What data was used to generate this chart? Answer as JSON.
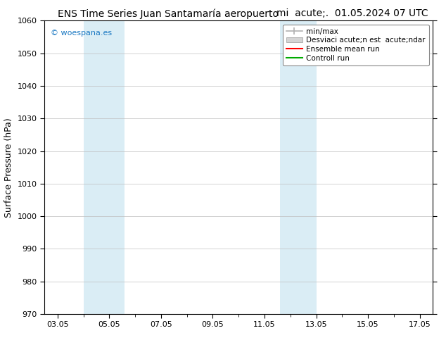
{
  "title": "ENS Time Series Juan Santamaría aeropuerto        mi  acute;.  01.05.2024 07 UTC",
  "ylabel": "Surface Pressure (hPa)",
  "ylim": [
    970,
    1060
  ],
  "yticks": [
    970,
    980,
    990,
    1000,
    1010,
    1020,
    1030,
    1040,
    1050,
    1060
  ],
  "xlim": [
    2.5,
    17.5
  ],
  "xtick_labels": [
    "03.05",
    "05.05",
    "07.05",
    "09.05",
    "11.05",
    "13.05",
    "15.05",
    "17.05"
  ],
  "xtick_positions": [
    3,
    5,
    7,
    9,
    11,
    13,
    15,
    17
  ],
  "shade_bands": [
    {
      "xmin": 4.0,
      "xmax": 5.6,
      "color": "#daedf5",
      "alpha": 1.0
    },
    {
      "xmin": 11.6,
      "xmax": 13.0,
      "color": "#daedf5",
      "alpha": 1.0
    }
  ],
  "watermark": "© woespana.es",
  "watermark_color": "#1a78c2",
  "legend_labels": [
    "min/max",
    "Desviaci acute;n est  acute;ndar",
    "Ensemble mean run",
    "Controll run"
  ],
  "legend_colors": [
    "#b0b0b0",
    "#c8c8c8",
    "#ff0000",
    "#00aa00"
  ],
  "bg_color": "#ffffff",
  "grid_color": "#c0c0c0",
  "tick_label_fontsize": 8,
  "title_fontsize": 10,
  "axis_label_fontsize": 9
}
